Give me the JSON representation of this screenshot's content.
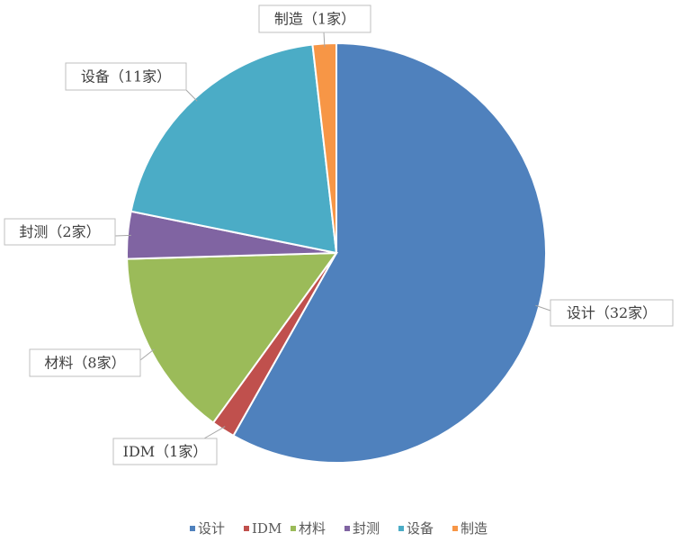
{
  "chart_data": {
    "type": "pie",
    "categories": [
      "设计",
      "IDM",
      "材料",
      "封测",
      "设备",
      "制造"
    ],
    "values": [
      32,
      1,
      8,
      2,
      11,
      1
    ],
    "value_labels": [
      "设计（32家）",
      "IDM（1家）",
      "材料（8家）",
      "封测（2家）",
      "设备（11家）",
      "制造（1家）"
    ],
    "colors": [
      "#4f81bd",
      "#c0504d",
      "#9bbb59",
      "#8064a2",
      "#4bacc6",
      "#f79646"
    ],
    "legend": "bottom"
  }
}
